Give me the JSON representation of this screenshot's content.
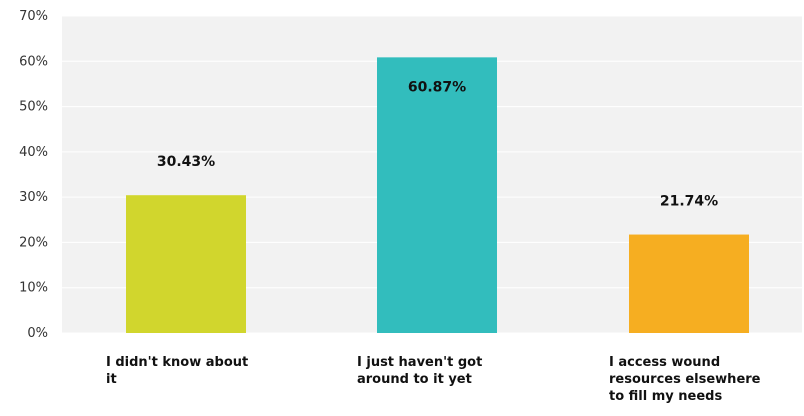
{
  "chart_data": {
    "type": "bar",
    "title": "",
    "xlabel": "",
    "ylabel": "",
    "categories": [
      [
        "I didn't know about",
        "it"
      ],
      [
        "I just haven't got",
        "around to it yet"
      ],
      [
        "I access wound",
        "resources elsewhere",
        "to fill my needs"
      ]
    ],
    "values": [
      30.43,
      60.87,
      21.74
    ],
    "value_labels": [
      "30.43%",
      "60.87%",
      "21.74%"
    ],
    "colors": [
      "#d1d62d",
      "#32bdbd",
      "#f6ae21"
    ],
    "ylim": [
      0,
      70
    ],
    "y_ticks": [
      0,
      10,
      20,
      30,
      40,
      50,
      60,
      70
    ],
    "y_tick_labels": [
      "0%",
      "10%",
      "20%",
      "30%",
      "40%",
      "50%",
      "60%",
      "70%"
    ],
    "grid": true,
    "legend": false,
    "plot_background": "#f2f2f2",
    "grid_color": "#ffffff"
  }
}
